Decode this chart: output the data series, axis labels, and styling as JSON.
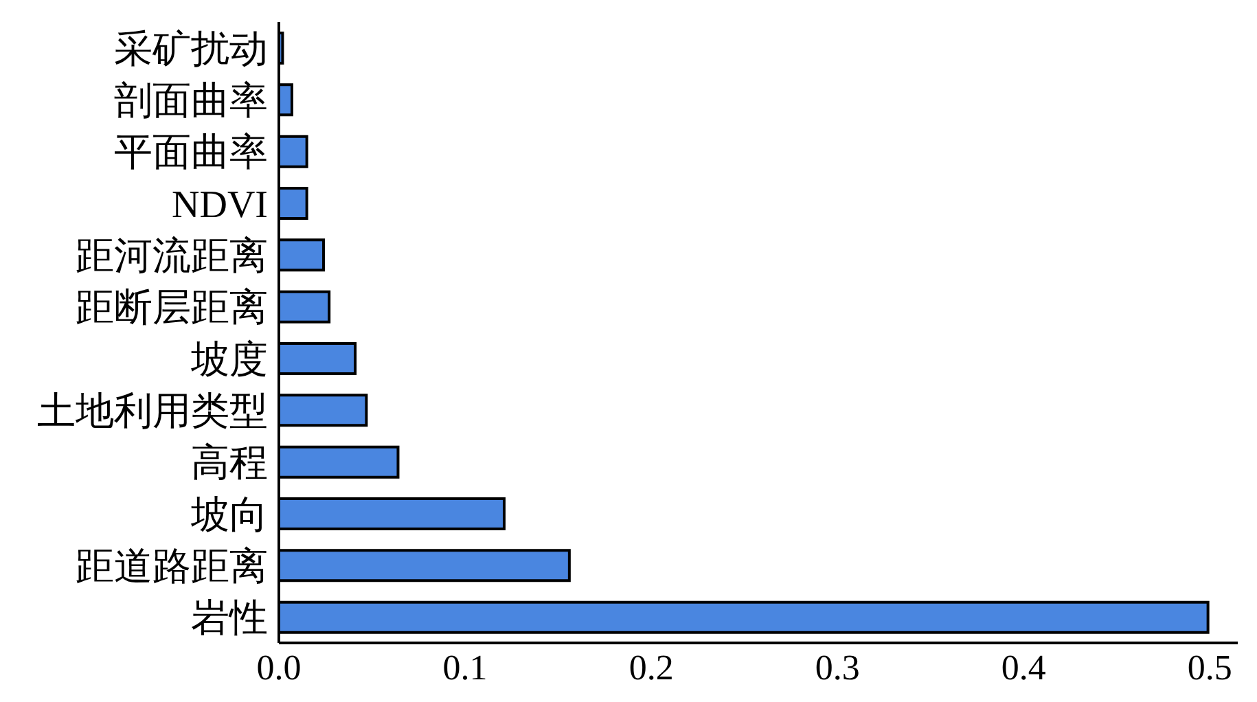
{
  "chart_data": {
    "type": "bar",
    "orientation": "horizontal",
    "categories": [
      "采矿扰动",
      "剖面曲率",
      "平面曲率",
      "NDVI",
      "距河流距离",
      "距断层距离",
      "坡度",
      "土地利用类型",
      "高程",
      "坡向",
      "距道路距离",
      "岩性"
    ],
    "values": [
      0.002,
      0.007,
      0.015,
      0.015,
      0.024,
      0.027,
      0.041,
      0.047,
      0.064,
      0.121,
      0.156,
      0.499
    ],
    "color": "#4a86e0",
    "xlim": [
      0,
      0.515
    ],
    "xticks": [
      {
        "value": 0,
        "label": "0.0"
      },
      0.1,
      0.2,
      0.3,
      0.4,
      0.5
    ],
    "grid": false
  }
}
